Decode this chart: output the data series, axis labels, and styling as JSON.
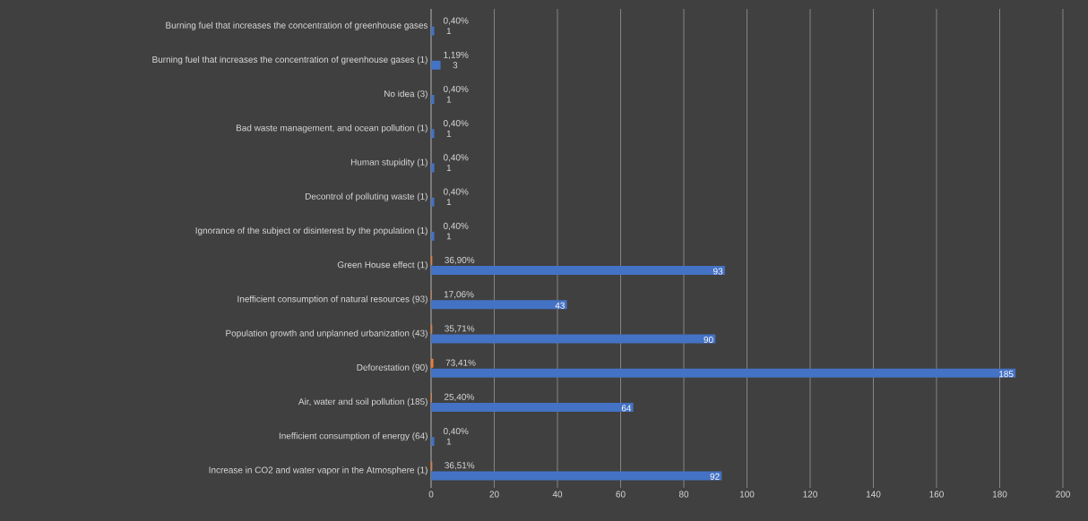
{
  "chart_data": {
    "type": "bar",
    "orientation": "horizontal",
    "categories": [
      "Burning fuel that increases the concentration of greenhouse gases",
      "Burning fuel that increases the concentration of greenhouse gases (1)",
      "No idea (3)",
      "Bad waste management, and ocean pollution (1)",
      "Human stupidity (1)",
      "Decontrol of polluting waste (1)",
      "Ignorance of the subject or disinterest by the population (1)",
      "Green House effect (1)",
      "Inefficient consumption of natural resources (93)",
      "Population growth and unplanned urbanization (43)",
      "Deforestation (90)",
      "Air, water and soil pollution (185)",
      "Inefficient consumption of energy (64)",
      "Increase in CO2 and water vapor in the Atmosphere (1)"
    ],
    "series": [
      {
        "color": "#ed7d31",
        "values": [
          0.004,
          0.0119,
          0.004,
          0.004,
          0.004,
          0.004,
          0.004,
          0.369,
          0.1706,
          0.3571,
          0.7341,
          0.254,
          0.004,
          0.3651
        ],
        "value_labels": [
          "0,40%",
          "1,19%",
          "0,40%",
          "0,40%",
          "0,40%",
          "0,40%",
          "0,40%",
          "36,90%",
          "17,06%",
          "35,71%",
          "73,41%",
          "25,40%",
          "0,40%",
          "36,51%"
        ]
      },
      {
        "color": "#4472c4",
        "values": [
          1,
          3,
          1,
          1,
          1,
          1,
          1,
          93,
          43,
          90,
          185,
          64,
          1,
          92
        ],
        "data_labels": true
      }
    ],
    "xlim": [
      0,
      200
    ],
    "xticks": [
      0,
      20,
      40,
      60,
      80,
      100,
      120,
      140,
      160,
      180,
      200
    ],
    "grid": "x"
  }
}
